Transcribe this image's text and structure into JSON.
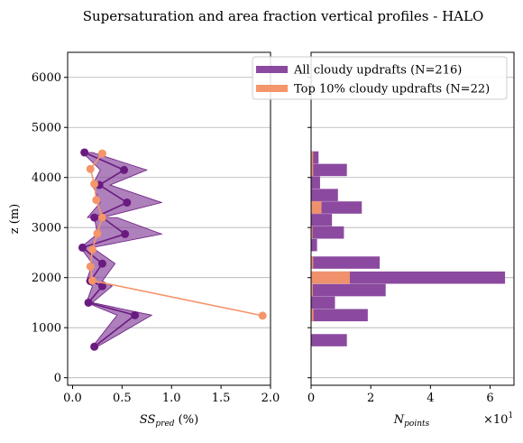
{
  "chart_data": [
    {
      "type": "line",
      "title": "Supersaturation and area fraction vertical profiles - HALO",
      "xlabel": "SS",
      "xlabel_sub": "pred",
      "xlabel_unit": " (%)",
      "ylabel": "z (m)",
      "xlim": [
        -0.05,
        2.0
      ],
      "ylim": [
        -150,
        6500
      ],
      "xticks": [
        "0.0",
        "0.5",
        "1.0",
        "1.5",
        "2.0"
      ],
      "xtick_values": [
        0,
        0.5,
        1.0,
        1.5,
        2.0
      ],
      "yticks": [
        "0",
        "1000",
        "2000",
        "3000",
        "4000",
        "5000",
        "6000"
      ],
      "ytick_values": [
        0,
        1000,
        2000,
        3000,
        4000,
        5000,
        6000
      ],
      "grid": "horizontal",
      "series": [
        {
          "name": "All cloudy updrafts (N=216)",
          "color": "#6a1b80",
          "band_color": "#8b4a9f",
          "points": [
            [
              0.12,
              4500
            ],
            [
              0.52,
              4150
            ],
            [
              0.27,
              3850
            ],
            [
              0.55,
              3500
            ],
            [
              0.22,
              3200
            ],
            [
              0.3,
              3200
            ],
            [
              0.53,
              2870
            ],
            [
              0.1,
              2600
            ],
            [
              0.3,
              2280
            ],
            [
              0.18,
              1930
            ],
            [
              0.3,
              1830
            ],
            [
              0.16,
              1500
            ],
            [
              0.63,
              1250
            ],
            [
              0.22,
              620
            ]
          ],
          "lower": [
            0.1,
            0.28,
            0.2,
            0.28,
            0.15,
            0.22,
            0.25,
            0.08,
            0.2,
            0.14,
            0.2,
            0.14,
            0.45,
            0.2
          ],
          "upper": [
            0.2,
            0.75,
            0.38,
            0.9,
            0.3,
            0.45,
            0.9,
            0.2,
            0.43,
            0.3,
            0.4,
            0.2,
            0.8,
            0.25
          ]
        },
        {
          "name": "Top 10% cloudy updrafts (N=22)",
          "color": "#f4956a",
          "points": [
            [
              0.3,
              4480
            ],
            [
              0.18,
              4170
            ],
            [
              0.22,
              3870
            ],
            [
              0.24,
              3550
            ],
            [
              0.3,
              3200
            ],
            [
              0.25,
              2880
            ],
            [
              0.2,
              2560
            ],
            [
              0.18,
              2220
            ],
            [
              0.2,
              1940
            ],
            [
              1.92,
              1240
            ]
          ]
        }
      ]
    },
    {
      "type": "bar",
      "orientation": "horizontal",
      "xlabel": "N",
      "xlabel_sub": "points",
      "x_multiplier": "×10",
      "x_multiplier_exp": "1",
      "xlim": [
        0,
        6.8
      ],
      "xticks": [
        "0",
        "2",
        "4",
        "6"
      ],
      "xtick_values": [
        0,
        2,
        4,
        6
      ],
      "series": [
        {
          "name": "All cloudy updrafts (N=216)",
          "color": "#8b4a9f",
          "bars": [
            [
              4400,
              0.25
            ],
            [
              4150,
              1.2
            ],
            [
              3900,
              0.3
            ],
            [
              3650,
              0.9
            ],
            [
              3400,
              1.7
            ],
            [
              3150,
              0.7
            ],
            [
              2900,
              1.1
            ],
            [
              2650,
              0.2
            ],
            [
              2300,
              2.3
            ],
            [
              2000,
              6.5
            ],
            [
              1750,
              2.5
            ],
            [
              1500,
              0.8
            ],
            [
              1250,
              1.9
            ],
            [
              750,
              1.2
            ]
          ]
        },
        {
          "name": "Top 10% cloudy updrafts (N=22)",
          "color": "#f4956a",
          "bars": [
            [
              4400,
              0.07
            ],
            [
              4150,
              0.07
            ],
            [
              3400,
              0.35
            ],
            [
              2900,
              0.05
            ],
            [
              2300,
              0.07
            ],
            [
              2000,
              1.3
            ],
            [
              1750,
              0.06
            ],
            [
              1250,
              0.08
            ]
          ]
        }
      ]
    }
  ]
}
